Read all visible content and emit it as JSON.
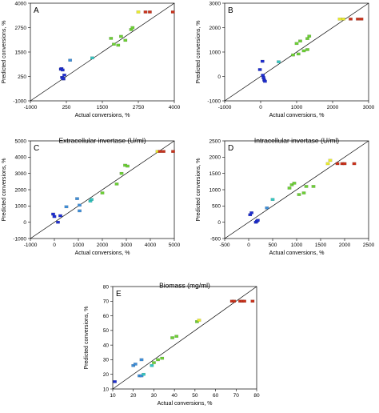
{
  "colors": {
    "low": "#1f2fd0",
    "mid_low": "#3f8ed8",
    "mid": "#33c6c0",
    "mid_high": "#6ccf35",
    "high": "#e8ea2e",
    "max": "#c8321c",
    "line": "#000000"
  },
  "chart_data": [
    {
      "type": "scatter",
      "panel": "A",
      "title": "",
      "xlabel": "Actual conversions, %",
      "ylabel": "Predicted conversions, %",
      "xlim": [
        -1000,
        4000
      ],
      "ylim": [
        -1000,
        4000
      ],
      "xticks": [
        "-1000",
        "250",
        "1500",
        "2750",
        "4000"
      ],
      "yticks": [
        "-1000",
        "250",
        "1500",
        "2750",
        "4000"
      ],
      "fit_line": [
        [
          -1000,
          -1000
        ],
        [
          4000,
          4000
        ]
      ],
      "points": [
        {
          "x": 60,
          "y": 620,
          "c": "low"
        },
        {
          "x": 80,
          "y": 650,
          "c": "low"
        },
        {
          "x": 120,
          "y": 580,
          "c": "low"
        },
        {
          "x": 100,
          "y": 200,
          "c": "low"
        },
        {
          "x": 150,
          "y": 120,
          "c": "low"
        },
        {
          "x": 180,
          "y": 320,
          "c": "low"
        },
        {
          "x": 130,
          "y": 160,
          "c": "low"
        },
        {
          "x": 380,
          "y": 1080,
          "c": "mid_low"
        },
        {
          "x": 1150,
          "y": 1200,
          "c": "mid"
        },
        {
          "x": 1800,
          "y": 2200,
          "c": "mid_high"
        },
        {
          "x": 1900,
          "y": 1900,
          "c": "mid_high"
        },
        {
          "x": 2050,
          "y": 1850,
          "c": "mid_high"
        },
        {
          "x": 2150,
          "y": 2300,
          "c": "mid_high"
        },
        {
          "x": 2300,
          "y": 2100,
          "c": "mid_high"
        },
        {
          "x": 2500,
          "y": 2650,
          "c": "mid_high"
        },
        {
          "x": 2550,
          "y": 2750,
          "c": "mid_high"
        },
        {
          "x": 2750,
          "y": 3550,
          "c": "high"
        },
        {
          "x": 3000,
          "y": 3550,
          "c": "max"
        },
        {
          "x": 3150,
          "y": 3550,
          "c": "max"
        },
        {
          "x": 3950,
          "y": 3550,
          "c": "max"
        }
      ]
    },
    {
      "type": "scatter",
      "panel": "B",
      "title": "",
      "xlabel": "Actual conversions, %",
      "ylabel": "Predicted conversions, %",
      "xlim": [
        -1000,
        3000
      ],
      "ylim": [
        -1000,
        3000
      ],
      "xticks": [
        "-1000",
        "0",
        "1000",
        "2000",
        "3000"
      ],
      "yticks": [
        "-1000",
        "0",
        "1000",
        "2000",
        "3000"
      ],
      "fit_line": [
        [
          -1000,
          -1000
        ],
        [
          3000,
          3000
        ]
      ],
      "points": [
        {
          "x": -20,
          "y": 280,
          "c": "low"
        },
        {
          "x": 50,
          "y": 620,
          "c": "low"
        },
        {
          "x": 60,
          "y": 50,
          "c": "low"
        },
        {
          "x": 80,
          "y": -50,
          "c": "low"
        },
        {
          "x": 100,
          "y": -150,
          "c": "low"
        },
        {
          "x": 120,
          "y": -200,
          "c": "low"
        },
        {
          "x": 500,
          "y": 600,
          "c": "mid"
        },
        {
          "x": 900,
          "y": 880,
          "c": "mid_high"
        },
        {
          "x": 1050,
          "y": 920,
          "c": "mid_high"
        },
        {
          "x": 1000,
          "y": 1350,
          "c": "mid_high"
        },
        {
          "x": 1100,
          "y": 1450,
          "c": "mid_high"
        },
        {
          "x": 1200,
          "y": 1050,
          "c": "mid_high"
        },
        {
          "x": 1300,
          "y": 1100,
          "c": "mid_high"
        },
        {
          "x": 1300,
          "y": 1550,
          "c": "mid_high"
        },
        {
          "x": 1350,
          "y": 1650,
          "c": "mid_high"
        },
        {
          "x": 2200,
          "y": 2350,
          "c": "high"
        },
        {
          "x": 2300,
          "y": 2350,
          "c": "high"
        },
        {
          "x": 2500,
          "y": 2350,
          "c": "max"
        },
        {
          "x": 2700,
          "y": 2350,
          "c": "max"
        },
        {
          "x": 2800,
          "y": 2350,
          "c": "max"
        }
      ]
    },
    {
      "type": "scatter",
      "panel": "C",
      "title": "Extracellular invertase (U/ml)",
      "xlabel": "Actual conversions, %",
      "ylabel": "Predicted conversions, %",
      "xlim": [
        -1000,
        5000
      ],
      "ylim": [
        -1000,
        5000
      ],
      "xticks": [
        "-1000",
        "0",
        "1000",
        "2000",
        "3000",
        "4000",
        "5000"
      ],
      "yticks": [
        "-1000",
        "0",
        "1000",
        "2000",
        "3000",
        "4000",
        "5000"
      ],
      "fit_line": [
        [
          -1000,
          -1000
        ],
        [
          5000,
          5000
        ]
      ],
      "points": [
        {
          "x": -50,
          "y": 500,
          "c": "low"
        },
        {
          "x": 0,
          "y": 350,
          "c": "low"
        },
        {
          "x": 150,
          "y": 0,
          "c": "low"
        },
        {
          "x": 250,
          "y": 400,
          "c": "low"
        },
        {
          "x": 500,
          "y": 950,
          "c": "mid_low"
        },
        {
          "x": 950,
          "y": 1450,
          "c": "mid_low"
        },
        {
          "x": 1050,
          "y": 700,
          "c": "mid_low"
        },
        {
          "x": 1050,
          "y": 1050,
          "c": "mid_low"
        },
        {
          "x": 1500,
          "y": 1300,
          "c": "mid"
        },
        {
          "x": 1550,
          "y": 1400,
          "c": "mid"
        },
        {
          "x": 2000,
          "y": 1800,
          "c": "mid_high"
        },
        {
          "x": 2600,
          "y": 2350,
          "c": "mid_high"
        },
        {
          "x": 2800,
          "y": 3000,
          "c": "mid_high"
        },
        {
          "x": 2950,
          "y": 3500,
          "c": "mid_high"
        },
        {
          "x": 3050,
          "y": 3450,
          "c": "mid_high"
        },
        {
          "x": 4300,
          "y": 4350,
          "c": "high"
        },
        {
          "x": 4400,
          "y": 4350,
          "c": "max"
        },
        {
          "x": 4550,
          "y": 4350,
          "c": "max"
        },
        {
          "x": 4950,
          "y": 4350,
          "c": "max"
        }
      ]
    },
    {
      "type": "scatter",
      "panel": "D",
      "title": "Intracellular invertase (U/ml)",
      "xlabel": "Actual conversions, %",
      "ylabel": "Predicted conversions, %",
      "xlim": [
        -500,
        2500
      ],
      "ylim": [
        -500,
        2500
      ],
      "xticks": [
        "-500",
        "0",
        "500",
        "1000",
        "1500",
        "2000",
        "2500"
      ],
      "yticks": [
        "-500",
        "0",
        "500",
        "1000",
        "1500",
        "2000",
        "2500"
      ],
      "fit_line": [
        [
          -500,
          -500
        ],
        [
          2500,
          2500
        ]
      ],
      "points": [
        {
          "x": 30,
          "y": 230,
          "c": "low"
        },
        {
          "x": 60,
          "y": 290,
          "c": "low"
        },
        {
          "x": 150,
          "y": 0,
          "c": "low"
        },
        {
          "x": 170,
          "y": 30,
          "c": "low"
        },
        {
          "x": 190,
          "y": 60,
          "c": "low"
        },
        {
          "x": 380,
          "y": 440,
          "c": "mid_low"
        },
        {
          "x": 500,
          "y": 700,
          "c": "mid"
        },
        {
          "x": 850,
          "y": 1050,
          "c": "mid_high"
        },
        {
          "x": 900,
          "y": 1150,
          "c": "mid_high"
        },
        {
          "x": 950,
          "y": 1200,
          "c": "mid_high"
        },
        {
          "x": 1050,
          "y": 850,
          "c": "mid_high"
        },
        {
          "x": 1150,
          "y": 900,
          "c": "mid_high"
        },
        {
          "x": 1200,
          "y": 1100,
          "c": "mid_high"
        },
        {
          "x": 1350,
          "y": 1100,
          "c": "mid_high"
        },
        {
          "x": 1650,
          "y": 1800,
          "c": "high"
        },
        {
          "x": 1700,
          "y": 1900,
          "c": "high"
        },
        {
          "x": 1850,
          "y": 1800,
          "c": "max"
        },
        {
          "x": 1950,
          "y": 1800,
          "c": "max"
        },
        {
          "x": 2000,
          "y": 1800,
          "c": "max"
        },
        {
          "x": 2200,
          "y": 1800,
          "c": "max"
        }
      ]
    },
    {
      "type": "scatter",
      "panel": "E",
      "title": "Biomass (mg/ml)",
      "xlabel": "Actual conversions, %",
      "ylabel": "Predicted conversions, %",
      "xlim": [
        10,
        80
      ],
      "ylim": [
        10,
        80
      ],
      "xticks": [
        "10",
        "20",
        "30",
        "40",
        "50",
        "60",
        "70",
        "80"
      ],
      "yticks": [
        "10",
        "20",
        "30",
        "40",
        "50",
        "60",
        "70",
        "80"
      ],
      "fit_line": [
        [
          10,
          10
        ],
        [
          80,
          80
        ]
      ],
      "points": [
        {
          "x": 11,
          "y": 15,
          "c": "low"
        },
        {
          "x": 20,
          "y": 26,
          "c": "mid_low"
        },
        {
          "x": 21,
          "y": 27,
          "c": "mid_low"
        },
        {
          "x": 23,
          "y": 19,
          "c": "mid_low"
        },
        {
          "x": 24,
          "y": 30,
          "c": "mid_low"
        },
        {
          "x": 24,
          "y": 19,
          "c": "mid_low"
        },
        {
          "x": 25,
          "y": 20,
          "c": "mid"
        },
        {
          "x": 29,
          "y": 26,
          "c": "mid"
        },
        {
          "x": 30,
          "y": 28,
          "c": "mid_high"
        },
        {
          "x": 32,
          "y": 30,
          "c": "mid_high"
        },
        {
          "x": 34,
          "y": 31,
          "c": "mid_high"
        },
        {
          "x": 39,
          "y": 45,
          "c": "mid_high"
        },
        {
          "x": 41,
          "y": 46,
          "c": "mid_high"
        },
        {
          "x": 51,
          "y": 56,
          "c": "mid_high"
        },
        {
          "x": 52,
          "y": 57,
          "c": "high"
        },
        {
          "x": 68,
          "y": 70,
          "c": "max"
        },
        {
          "x": 69,
          "y": 70,
          "c": "max"
        },
        {
          "x": 72,
          "y": 70,
          "c": "max"
        },
        {
          "x": 73,
          "y": 70,
          "c": "max"
        },
        {
          "x": 74,
          "y": 70,
          "c": "max"
        },
        {
          "x": 78,
          "y": 70,
          "c": "max"
        }
      ]
    }
  ]
}
